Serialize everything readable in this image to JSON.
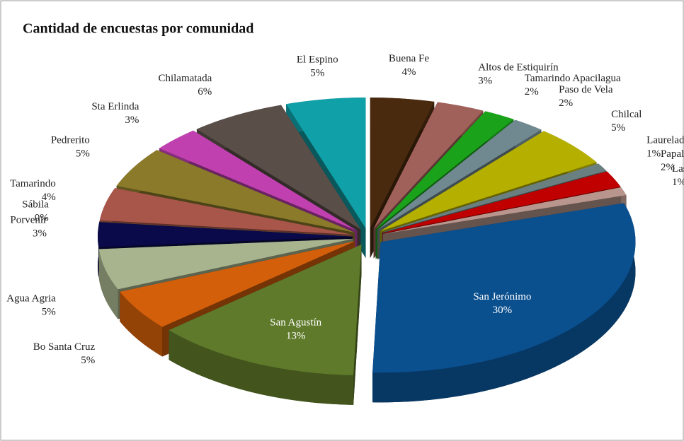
{
  "chart_data": {
    "type": "pie",
    "title": "Cantidad de encuestas por comunidad",
    "categories": [
      "Buena Fe",
      "Altos de Estiquirín",
      "Tamarindo Apacilagua",
      "Paso de Vela",
      "Chilcal",
      "Laurelada",
      "Papalon",
      "Las Placitas",
      "San Jerónimo",
      "San Agustín",
      "Bo Santa Cruz",
      "Agua Agria",
      "Porvenir",
      "Sábila",
      "Tamarindo",
      "Pedrerito",
      "Sta Erlinda",
      "Chilamatada",
      "El Espino"
    ],
    "values": [
      4,
      3,
      2,
      2,
      5,
      1,
      2,
      1,
      30,
      13,
      5,
      5,
      3,
      0,
      4,
      5,
      3,
      6,
      5
    ],
    "value_labels": [
      "4%",
      "3%",
      "2%",
      "2%",
      "5%",
      "1%",
      "2%",
      "1%",
      "30%",
      "13%",
      "5%",
      "5%",
      "3%",
      "0%",
      "4%",
      "5%",
      "3%",
      "6%",
      "5%"
    ],
    "colors": [
      "#4a2a0e",
      "#a0615a",
      "#1aa31a",
      "#708890",
      "#b5b000",
      "#6a7f80",
      "#c00000",
      "#b8968e",
      "#0a4f8e",
      "#5f7a2a",
      "#d35f0a",
      "#a7b48e",
      "#0a0a4a",
      "#b07050",
      "#a8554a",
      "#8a7a2a",
      "#c040b0",
      "#5a4e48",
      "#10a0a8"
    ]
  }
}
